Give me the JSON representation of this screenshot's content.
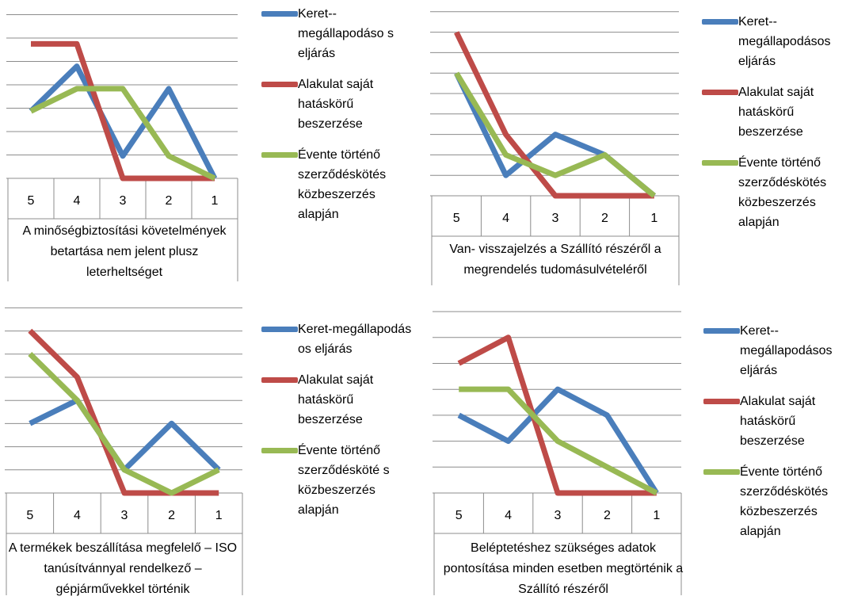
{
  "colors": {
    "blue": "#4a7ebb",
    "red": "#be4b48",
    "green": "#98b954"
  },
  "chart_data": [
    {
      "type": "line",
      "title": "A minőségbiztosítási követelmények betartása nem jelent plusz leterheltséget",
      "categories": [
        "5",
        "4",
        "3",
        "2",
        "1"
      ],
      "ylim": [
        0,
        7.5
      ],
      "grid": true,
      "legend_position": "right",
      "series": [
        {
          "name": "Keret-megállapodásos eljárás",
          "values": [
            3,
            5,
            1,
            4,
            0
          ],
          "color": "#4a7ebb"
        },
        {
          "name": "Alakulat saját hatáskörű beszerzése",
          "values": [
            6,
            6,
            0,
            0,
            0
          ],
          "color": "#be4b48"
        },
        {
          "name": "Évente történő szerződéskötés közbeszerzés alapján",
          "values": [
            3,
            4,
            4,
            1,
            0
          ],
          "color": "#98b954"
        }
      ]
    },
    {
      "type": "line",
      "title": "Van- visszajelzés a Szállító részéről a megrendelés tudomásulvételéről",
      "categories": [
        "5",
        "4",
        "3",
        "2",
        "1"
      ],
      "ylim": [
        0,
        9
      ],
      "grid": true,
      "legend_position": "right",
      "series": [
        {
          "name": "Keret-megállapodásos eljárás",
          "values": [
            6,
            1,
            3,
            2,
            0
          ],
          "color": "#4a7ebb"
        },
        {
          "name": "Alakulat saját hatáskörű beszerzése",
          "values": [
            8,
            3,
            0,
            0,
            0
          ],
          "color": "#be4b48"
        },
        {
          "name": "Évente történő szerződéskötés közbeszerzés alapján",
          "values": [
            6,
            2,
            1,
            2,
            0
          ],
          "color": "#98b954"
        }
      ]
    },
    {
      "type": "line",
      "title": "A termékek beszállítása megfelelő – ISO tanúsítvánnyal rendelkező – gépjárművekkel történik",
      "categories": [
        "5",
        "4",
        "3",
        "2",
        "1"
      ],
      "ylim": [
        0,
        8
      ],
      "grid": true,
      "legend_position": "right",
      "series": [
        {
          "name": "Keret-megállapodásos eljárás",
          "values": [
            3,
            4,
            1,
            3,
            1
          ],
          "color": "#4a7ebb"
        },
        {
          "name": "Alakulat saját hatáskörű beszerzése",
          "values": [
            7,
            5,
            0,
            0,
            0
          ],
          "color": "#be4b48"
        },
        {
          "name": "Évente történő szerződéskötés közbeszerzés alapján",
          "values": [
            6,
            4,
            1,
            0,
            1
          ],
          "color": "#98b954"
        }
      ]
    },
    {
      "type": "line",
      "title": "Beléptetéshez szükséges adatok pontosítása minden esetben megtörténik a Szállító részéről",
      "categories": [
        "5",
        "4",
        "3",
        "2",
        "1"
      ],
      "ylim": [
        0,
        7
      ],
      "grid": true,
      "legend_position": "right",
      "series": [
        {
          "name": "Keret-megállapodásos eljárás",
          "values": [
            3,
            2,
            4,
            3,
            0
          ],
          "color": "#4a7ebb"
        },
        {
          "name": "Alakulat saját hatáskörű beszerzése",
          "values": [
            5,
            6,
            0,
            0,
            0
          ],
          "color": "#be4b48"
        },
        {
          "name": "Évente történő szerződéskötés közbeszerzés alapján",
          "values": [
            4,
            4,
            2,
            1,
            0
          ],
          "color": "#98b954"
        }
      ]
    }
  ],
  "legends": [
    [
      "Keret-­megállapodáso s eljárás",
      "Alakulat saját hatáskörű beszerzése",
      "Évente történő szerződéskötés közbeszerzés alapján"
    ],
    [
      "Keret-­megállapodásos eljárás",
      "Alakulat saját hatáskörű beszerzése",
      "Évente történő szerződéskötés közbeszerzés alapján"
    ],
    [
      "Keret-­megállapodás os eljárás",
      "Alakulat saját hatáskörű beszerzése",
      "Évente történő szerződésköté s közbeszerzés alapján"
    ],
    [
      "Keret-­megállapodásos eljárás",
      "Alakulat saját hatáskörű beszerzése",
      "Évente történő szerződéskötés közbeszerzés alapján"
    ]
  ]
}
